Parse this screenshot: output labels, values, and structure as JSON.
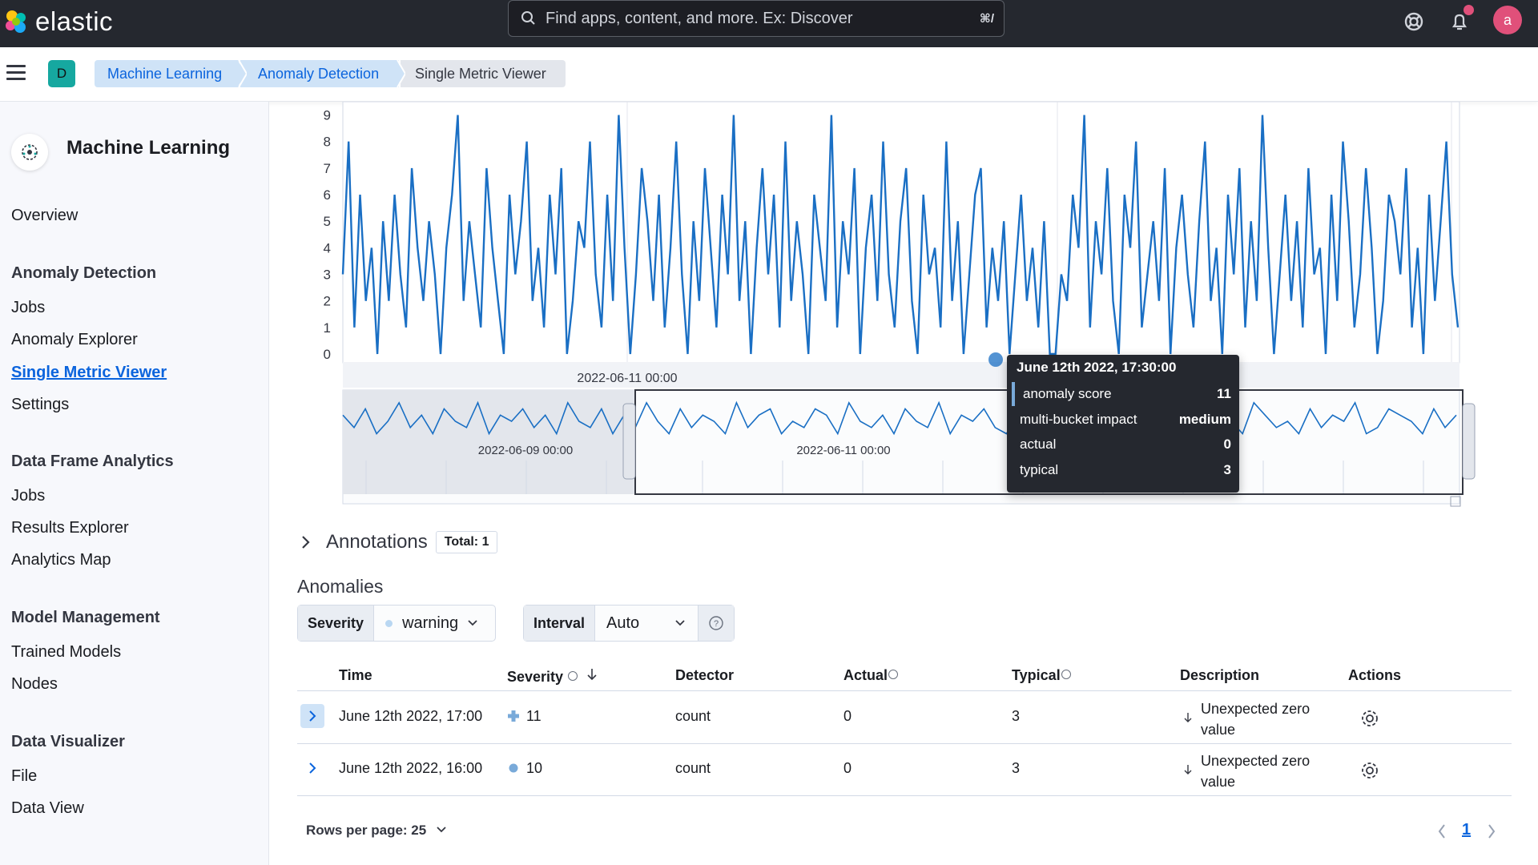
{
  "header": {
    "brand": "elastic",
    "search_placeholder": "Find apps, content, and more. Ex: Discover",
    "search_shortcut": "⌘/",
    "avatar_initial": "a",
    "icons": [
      "help-icon",
      "notifications-icon"
    ]
  },
  "breadcrumbs": {
    "space_initial": "D",
    "items": [
      "Machine Learning",
      "Anomaly Detection",
      "Single Metric Viewer"
    ]
  },
  "sidebar": {
    "title": "Machine Learning",
    "overview": "Overview",
    "groups": [
      {
        "label": "Anomaly Detection",
        "items": [
          "Jobs",
          "Anomaly Explorer",
          "Single Metric Viewer",
          "Settings"
        ]
      },
      {
        "label": "Data Frame Analytics",
        "items": [
          "Jobs",
          "Results Explorer",
          "Analytics Map"
        ]
      },
      {
        "label": "Model Management",
        "items": [
          "Trained Models",
          "Nodes"
        ]
      },
      {
        "label": "Data Visualizer",
        "items": [
          "File",
          "Data View"
        ]
      }
    ],
    "active_item": "Single Metric Viewer"
  },
  "chart_data": {
    "type": "line",
    "title": "",
    "y_ticks": [
      "0",
      "1",
      "2",
      "3",
      "4",
      "5",
      "6",
      "7",
      "8",
      "9"
    ],
    "ylim": [
      0,
      9.5
    ],
    "x_tick_label": "2022-06-11 00:00",
    "context_tick_labels": [
      "2022-06-09 00:00",
      "2022-06-11 00:00"
    ],
    "color": "#1a6fc4",
    "series": [
      {
        "values": [
          3,
          8,
          1,
          6,
          2,
          4,
          0,
          5,
          2,
          6,
          3,
          1,
          7,
          4,
          2,
          5,
          3,
          0,
          4,
          6,
          9,
          2,
          5,
          3,
          1,
          7,
          4,
          2,
          0,
          6,
          3,
          5,
          8,
          2,
          4,
          1,
          6,
          3,
          7,
          0,
          2,
          5,
          4,
          8,
          3,
          1,
          6,
          2,
          9,
          4,
          0,
          3,
          7,
          5,
          2,
          6,
          1,
          4,
          8,
          3,
          0,
          5,
          2,
          7,
          4,
          1,
          6,
          3,
          9,
          2,
          5,
          0,
          4,
          7,
          3,
          6,
          1,
          8,
          2,
          5,
          3,
          0,
          6,
          4,
          2,
          9,
          1,
          5,
          3,
          7,
          0,
          4,
          6,
          2,
          8,
          3,
          1,
          5,
          7,
          2,
          0,
          6,
          3,
          4,
          1,
          8,
          2,
          5,
          0,
          3,
          6,
          7,
          1,
          4,
          2,
          5,
          0,
          3,
          6,
          2,
          4,
          1,
          5,
          0,
          0,
          3,
          2,
          6,
          4,
          9,
          1,
          5,
          3,
          7,
          2,
          0,
          6,
          4,
          8,
          1,
          3,
          5,
          2,
          7,
          0,
          4,
          6,
          3,
          1,
          5,
          8,
          2,
          4,
          0,
          6,
          3,
          7,
          1,
          5,
          2,
          9,
          4,
          0,
          3,
          6,
          2,
          5,
          1,
          7,
          3,
          4,
          0,
          6,
          2,
          8,
          5,
          1,
          3,
          7,
          4,
          0,
          2,
          6,
          5,
          3,
          7,
          1,
          4,
          0,
          6,
          2,
          5,
          8,
          3,
          1
        ]
      }
    ],
    "context_series": [
      5,
      3,
      6,
      2,
      4,
      7,
      3,
      5,
      2,
      6,
      4,
      3,
      7,
      2,
      5,
      4,
      6,
      3,
      5,
      2,
      7,
      4,
      3,
      6,
      2,
      5,
      3,
      7,
      4,
      2,
      6,
      3,
      5,
      4,
      2,
      7,
      3,
      5,
      6,
      2,
      4,
      3,
      6,
      5,
      2,
      7,
      4,
      3,
      5,
      2,
      6,
      4,
      3,
      7,
      2,
      5,
      4,
      6,
      3,
      2,
      5,
      7,
      3,
      4,
      2,
      6,
      5,
      3,
      4,
      7,
      2,
      5,
      3,
      6,
      4,
      2,
      5,
      3,
      6,
      4,
      2,
      7,
      5,
      3,
      4,
      2,
      6,
      3,
      5,
      4,
      7,
      2,
      3,
      6,
      5,
      4,
      2,
      6,
      3,
      5
    ],
    "highlight_point": {
      "label": "June 12th 2022, 17:30:00",
      "y": 0
    }
  },
  "tooltip": {
    "title": "June 12th 2022, 17:30:00",
    "rows": [
      {
        "label": "anomaly score",
        "value": "11"
      },
      {
        "label": "multi-bucket impact",
        "value": "medium"
      },
      {
        "label": "actual",
        "value": "0"
      },
      {
        "label": "typical",
        "value": "3"
      }
    ]
  },
  "annotations": {
    "label": "Annotations",
    "total": "Total: 1"
  },
  "anomalies": {
    "title": "Anomalies",
    "severity_label": "Severity",
    "severity_value": "warning",
    "interval_label": "Interval",
    "interval_value": "Auto",
    "columns": [
      "Time",
      "Severity",
      "Detector",
      "Actual",
      "Typical",
      "Description",
      "Actions"
    ],
    "rows": [
      {
        "time": "June 12th 2022, 17:00",
        "severity": "11",
        "detector": "count",
        "actual": "0",
        "typical": "3",
        "desc1": "Unexpected zero",
        "desc2": "value",
        "severity_marker": "plus",
        "severity_color": "#79aad9"
      },
      {
        "time": "June 12th 2022, 16:00",
        "severity": "10",
        "detector": "count",
        "actual": "0",
        "typical": "3",
        "desc1": "Unexpected zero",
        "desc2": "value",
        "severity_marker": "dot",
        "severity_color": "#79aad9"
      }
    ],
    "rows_per_page": "Rows per page: 25",
    "page": "1"
  }
}
